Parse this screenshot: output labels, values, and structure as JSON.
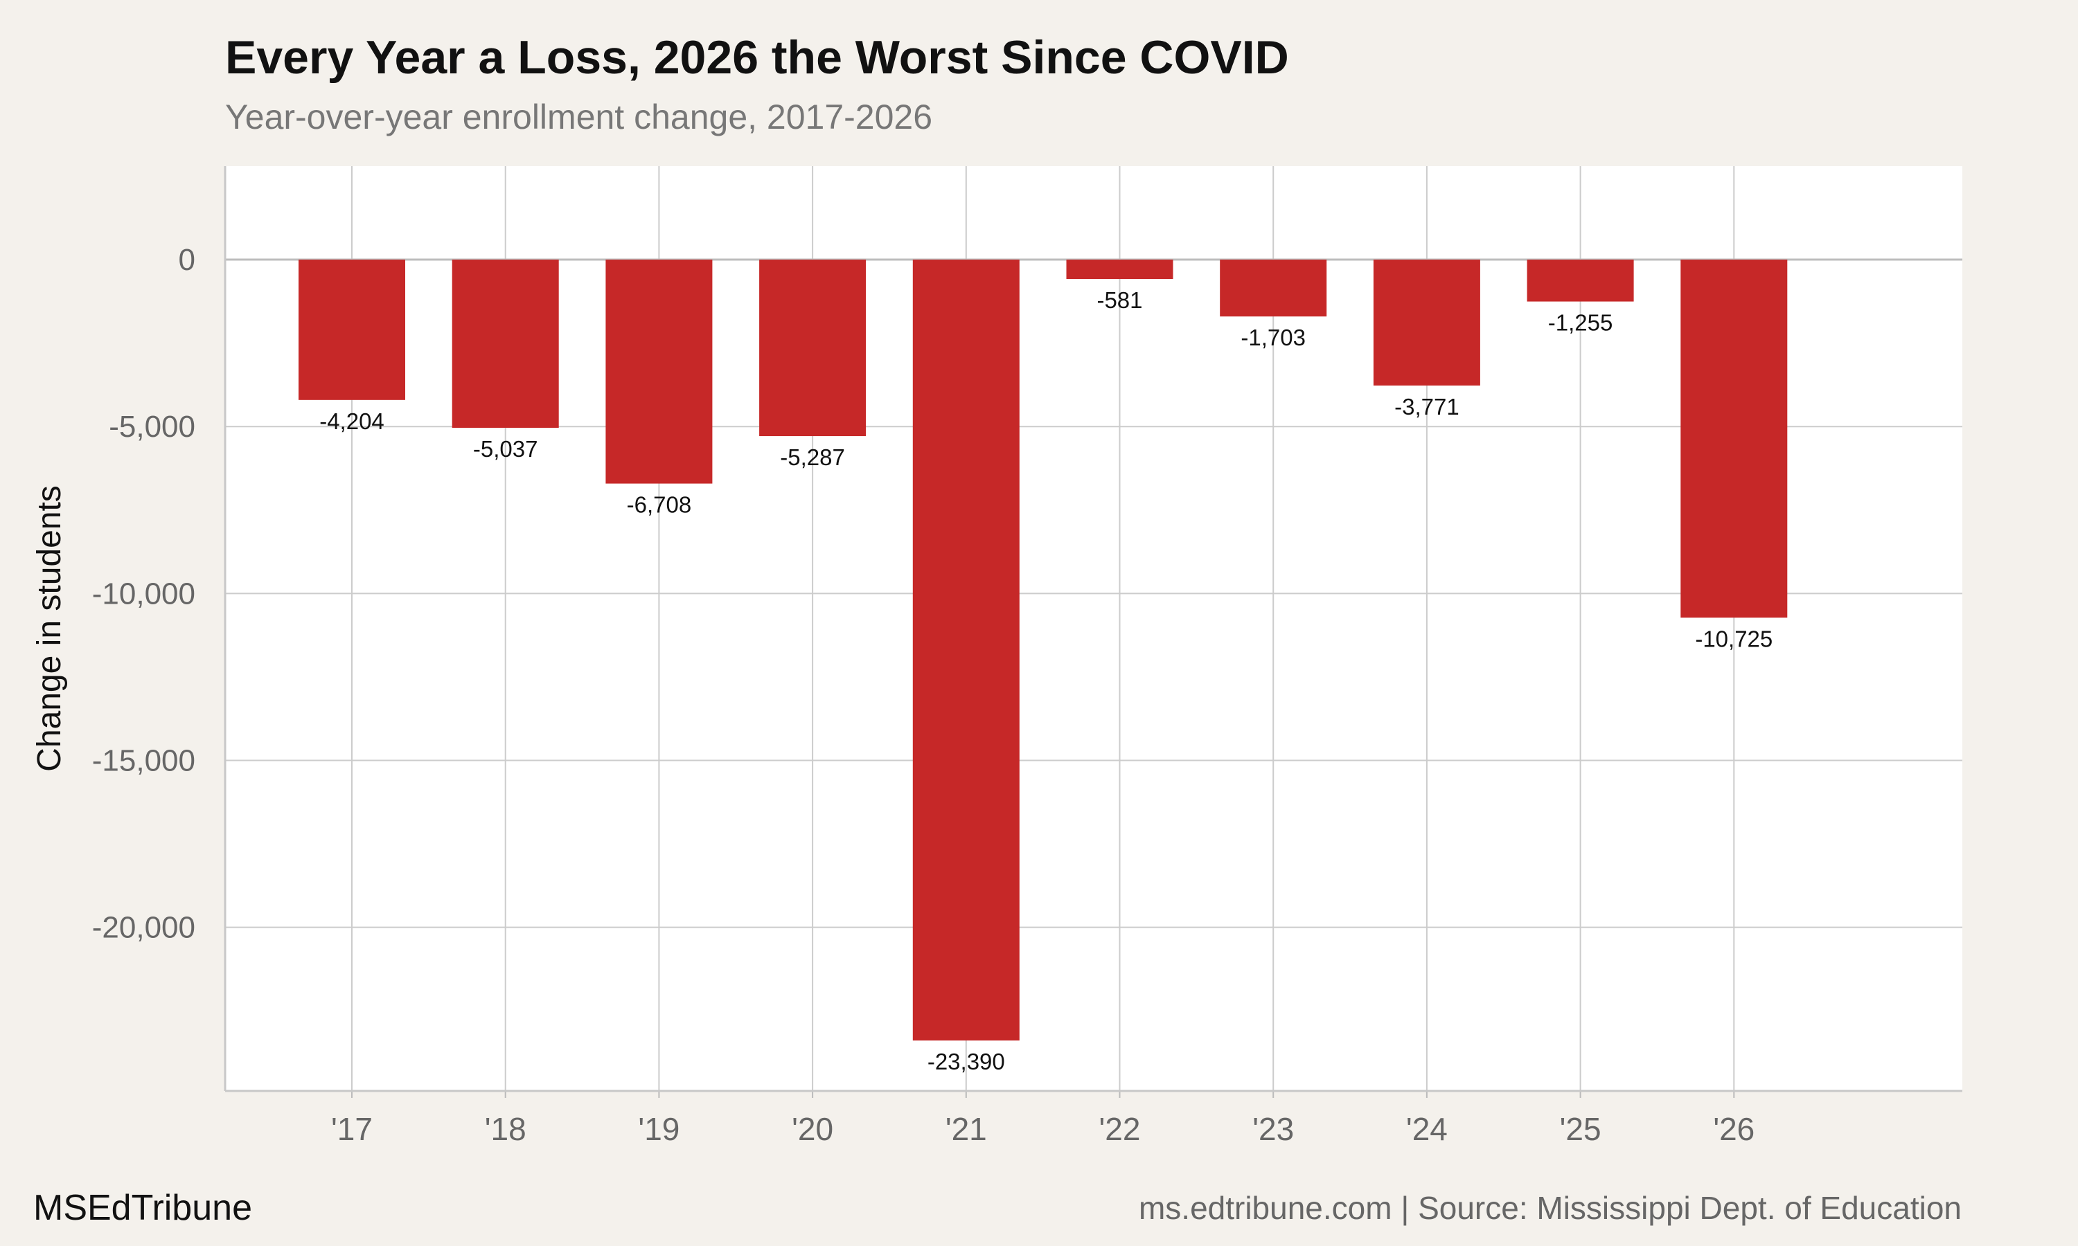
{
  "header": {
    "title": "Every Year a Loss, 2026 the Worst Since COVID",
    "subtitle": "Year-over-year enrollment change, 2017-2026"
  },
  "footer": {
    "brand": "MSEdTribune",
    "source": "ms.edtribune.com | Source: Mississippi Dept. of Education"
  },
  "chart_data": {
    "type": "bar",
    "categories": [
      "'17",
      "'18",
      "'19",
      "'20",
      "'21",
      "'22",
      "'23",
      "'24",
      "'25",
      "'26"
    ],
    "values": [
      -4204,
      -5037,
      -6708,
      -5287,
      -23390,
      -581,
      -1703,
      -3771,
      -1255,
      -10725
    ],
    "value_labels": [
      "-4,204",
      "-5,037",
      "-6,708",
      "-5,287",
      "-23,390",
      "-581",
      "-1,703",
      "-3,771",
      "-1,255",
      "-10,725"
    ],
    "title": "Every Year a Loss, 2026 the Worst Since COVID",
    "subtitle": "Year-over-year enrollment change, 2017-2026",
    "xlabel": "",
    "ylabel": "Change in students",
    "ylim": [
      -24900,
      2800
    ],
    "y_ticks": [
      0,
      -5000,
      -10000,
      -15000,
      -20000
    ],
    "y_tick_labels": [
      "0",
      "-5,000",
      "-10,000",
      "-15,000",
      "-20,000"
    ],
    "grid": true,
    "legend": "none",
    "colors": {
      "bar": "#c62828",
      "grid": "#cccccc",
      "zero_line": "#bdbdbd",
      "panel": "#ffffff",
      "background": "#f4f1ec"
    }
  }
}
